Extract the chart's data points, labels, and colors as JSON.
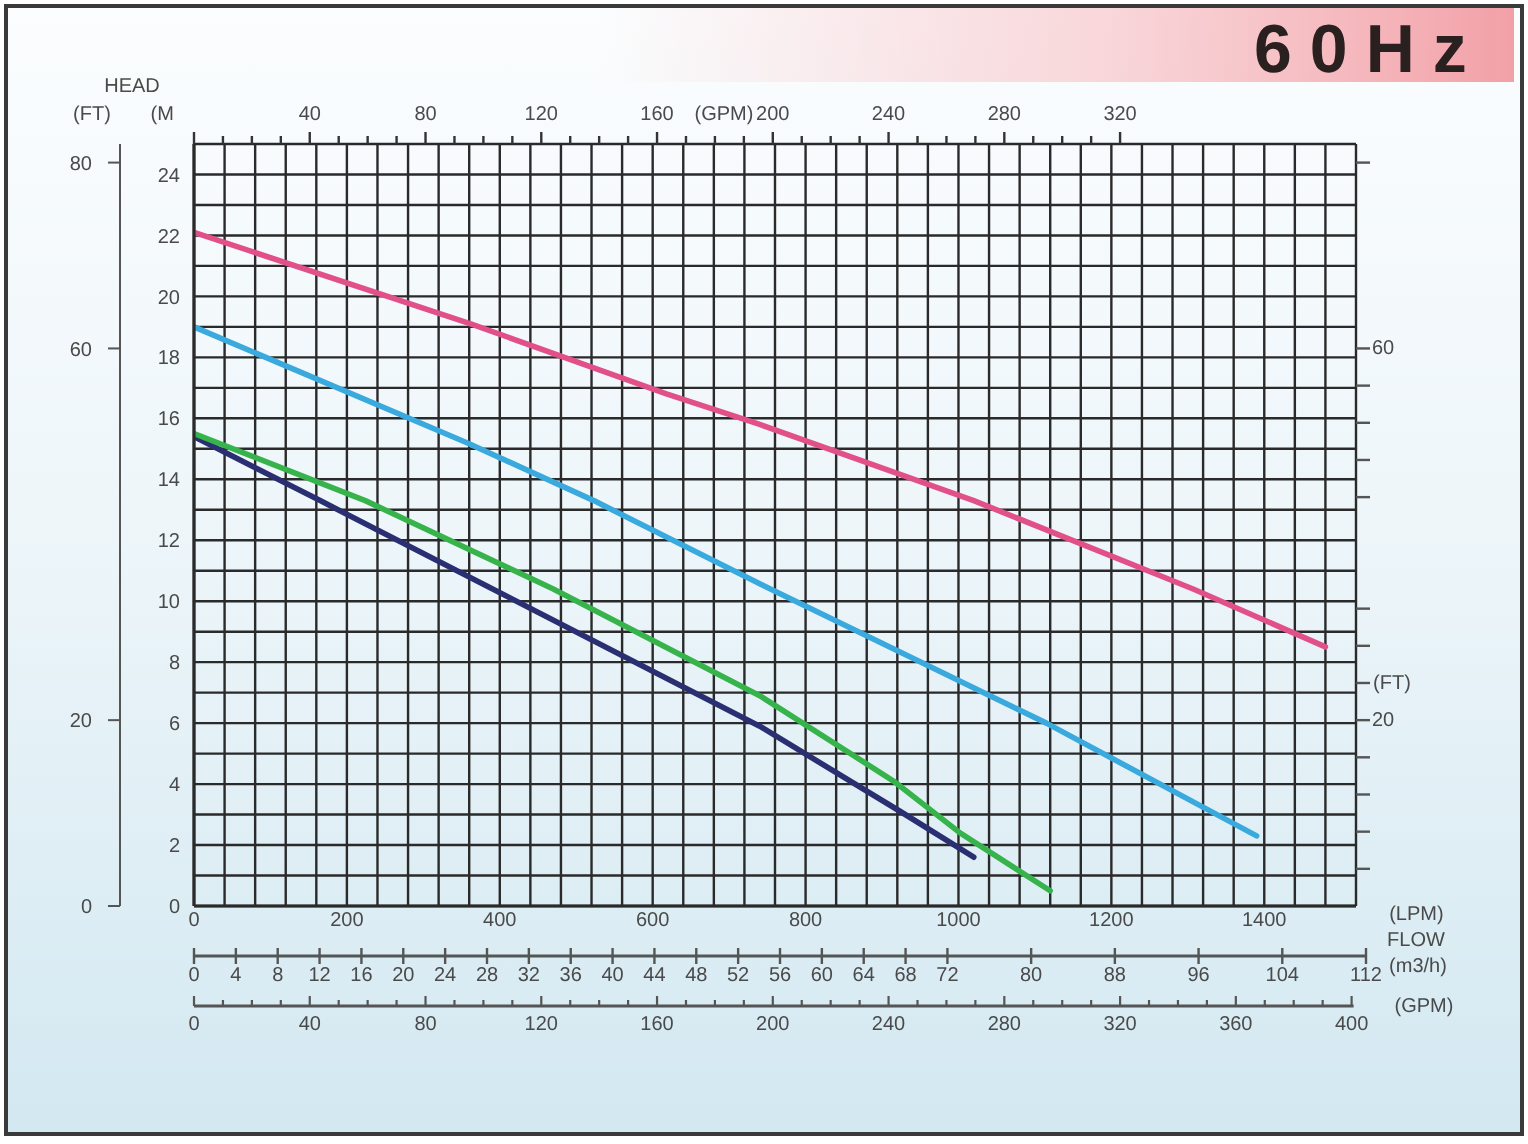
{
  "chart_data": {
    "type": "line",
    "title": "60Hz",
    "xlabel": "(LPM)",
    "ylabel": "(M",
    "y2label": "(FT)",
    "x2label": "(m3/h)",
    "annotations": [
      "HEAD",
      "(GPM)",
      "40",
      "80",
      "120",
      "160",
      "200",
      "240",
      "280",
      "320",
      "(FT)",
      "60",
      "20",
      "FLOW",
      "(GPM)",
      "0",
      "40",
      "80",
      "120",
      "160",
      "200",
      "240",
      "280",
      "320",
      "360",
      "400"
    ],
    "xlim": [
      0,
      1520
    ],
    "xticks": [
      0,
      {
        "value": 40,
        "label": null
      },
      {
        "value": 80,
        "label": null
      },
      {
        "value": 120,
        "label": null
      },
      {
        "value": 160,
        "label": null
      },
      200,
      {
        "value": 240,
        "label": null
      },
      {
        "value": 280,
        "label": null
      },
      {
        "value": 320,
        "label": null
      },
      {
        "value": 360,
        "label": null
      },
      400,
      {
        "value": 440,
        "label": null
      },
      {
        "value": 480,
        "label": null
      },
      {
        "value": 520,
        "label": null
      },
      {
        "value": 560,
        "label": null
      },
      600,
      {
        "value": 640,
        "label": null
      },
      {
        "value": 680,
        "label": null
      },
      {
        "value": 720,
        "label": null
      },
      {
        "value": 760,
        "label": null
      },
      800,
      {
        "value": 840,
        "label": null
      },
      {
        "value": 880,
        "label": null
      },
      {
        "value": 920,
        "label": null
      },
      {
        "value": 960,
        "label": null
      },
      1000,
      {
        "value": 1040,
        "label": null
      },
      {
        "value": 1080,
        "label": null
      },
      {
        "value": 1120,
        "label": null
      },
      {
        "value": 1160,
        "label": null
      },
      1200,
      {
        "value": 1240,
        "label": null
      },
      {
        "value": 1280,
        "label": null
      },
      {
        "value": 1320,
        "label": null
      },
      {
        "value": 1360,
        "label": null
      },
      1400,
      {
        "value": 1440,
        "label": null
      },
      {
        "value": 1480,
        "label": null
      },
      {
        "value": 1520,
        "label": null
      }
    ],
    "ylim": [
      0,
      25
    ],
    "yticks": [
      0,
      {
        "value": 1,
        "label": null
      },
      2,
      {
        "value": 3,
        "label": null
      },
      4,
      {
        "value": 5,
        "label": null
      },
      6,
      {
        "value": 7,
        "label": null
      },
      8,
      {
        "value": 9,
        "label": null
      },
      10,
      {
        "value": 11,
        "label": null
      },
      12,
      {
        "value": 13,
        "label": null
      },
      14,
      {
        "value": 15,
        "label": null
      },
      16,
      {
        "value": 17,
        "label": null
      },
      18,
      {
        "value": 19,
        "label": null
      },
      20,
      {
        "value": 21,
        "label": null
      },
      22,
      {
        "value": 23,
        "label": null
      },
      24,
      {
        "value": 25,
        "label": null
      }
    ],
    "y2lim": [
      0,
      82
    ],
    "y2ticks": [
      0,
      20,
      60,
      80
    ],
    "x2lim": [
      0,
      112
    ],
    "x2ticks": [
      0,
      4,
      8,
      12,
      16,
      20,
      24,
      28,
      32,
      36,
      40,
      44,
      48,
      52,
      56,
      60,
      64,
      68,
      72,
      80,
      88,
      96,
      104,
      112
    ],
    "series": [
      {
        "color": "#2a2f72",
        "x": [
          0,
          165,
          383,
          740,
          924,
          1020
        ],
        "values": [
          15.4,
          13.3,
          10.5,
          5.9,
          3.1,
          1.6
        ]
      },
      {
        "color": "#36b34a",
        "x": [
          0,
          224,
          470,
          740,
          915,
          1002,
          1120
        ],
        "values": [
          15.5,
          13.3,
          10.4,
          6.9,
          4.1,
          2.4,
          0.5
        ]
      },
      {
        "color": "#3aa9dd",
        "x": [
          0,
          357,
          523,
          754,
          1115,
          1390
        ],
        "values": [
          19.0,
          15.2,
          13.3,
          10.4,
          6.0,
          2.3
        ]
      },
      {
        "color": "#e2508a",
        "x": [
          0,
          362,
          618,
          740,
          1020,
          1307,
          1480
        ],
        "values": [
          22.1,
          19.1,
          16.8,
          15.8,
          13.3,
          10.4,
          8.5
        ]
      }
    ],
    "grid": true,
    "marker": "none",
    "line_style": "solid"
  }
}
